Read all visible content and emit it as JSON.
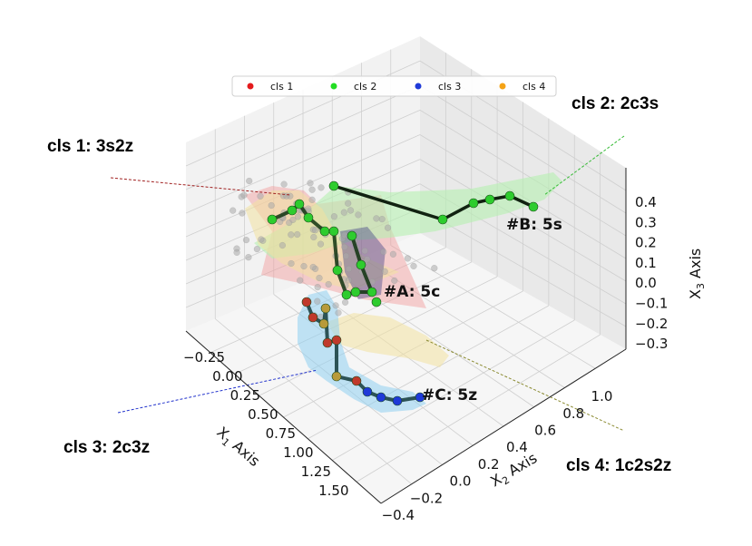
{
  "chart_data": {
    "type": "scatter",
    "axes": {
      "x1": {
        "label": "Axis",
        "symbol": "X",
        "sub": "1",
        "ticks": [
          "−0.25",
          "0.00",
          "0.25",
          "0.50",
          "0.75",
          "1.00",
          "1.25",
          "1.50"
        ]
      },
      "x2": {
        "label": "Axis",
        "symbol": "X",
        "sub": "2",
        "ticks": [
          "−0.4",
          "−0.2",
          "0.0",
          "0.2",
          "0.4",
          "0.6",
          "0.8",
          "1.0"
        ]
      },
      "x3": {
        "label": "Axis",
        "symbol": "X",
        "sub": "3",
        "ticks": [
          "0.4",
          "0.3",
          "0.2",
          "0.1",
          "0.0",
          "−0.1",
          "−0.2",
          "−0.3"
        ]
      }
    },
    "legend": {
      "placement": "top-center",
      "entries": [
        {
          "name": "cls 1",
          "color": "#e41a1c"
        },
        {
          "name": "cls 2",
          "color": "#22dd22"
        },
        {
          "name": "cls 3",
          "color": "#1f3ad8"
        },
        {
          "name": "cls 4",
          "color": "#f5a316"
        }
      ]
    },
    "annotations": [
      {
        "id": "A",
        "text": "#A: 5c"
      },
      {
        "id": "B",
        "text": "#B: 5s"
      },
      {
        "id": "C",
        "text": "#C: 5z"
      }
    ],
    "class_labels": [
      {
        "text": "cls 1: 3s2z",
        "color": "#a02020"
      },
      {
        "text": "cls 2: 2c3s",
        "color": "#33bb33"
      },
      {
        "text": "cls 3: 2c3z",
        "color": "#2233cc"
      },
      {
        "text": "cls 4: 1c2s2z",
        "color": "#8a8a30"
      }
    ],
    "grid": true
  }
}
